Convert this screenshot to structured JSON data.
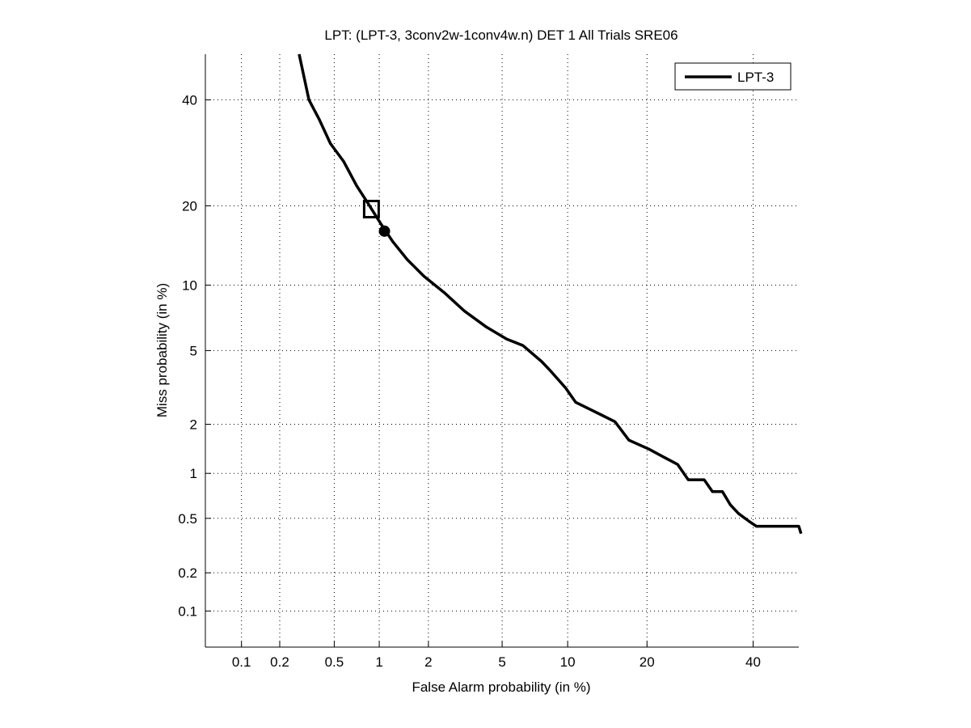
{
  "chart_data": {
    "type": "line",
    "title": "LPT: (LPT-3, 3conv2w-1conv4w.n) DET 1 All Trials SRE06",
    "xlabel": "False Alarm probability (in %)",
    "ylabel": "Miss probability (in %)",
    "xscale": "probit",
    "yscale": "probit",
    "xlim": [
      0.05,
      50
    ],
    "ylim": [
      0.05,
      50
    ],
    "grid": true,
    "xticks": [
      0.1,
      0.2,
      0.5,
      1,
      2,
      5,
      10,
      20,
      40
    ],
    "xtick_labels": [
      "0.1",
      "0.2",
      "0.5",
      "1",
      "2",
      "5",
      "10",
      "20",
      "40"
    ],
    "yticks": [
      0.1,
      0.2,
      0.5,
      1,
      2,
      5,
      10,
      20,
      40
    ],
    "ytick_labels": [
      "0.1",
      "0.2",
      "0.5",
      "1",
      "2",
      "5",
      "10",
      "20",
      "40"
    ],
    "legend": {
      "placement": "top-right",
      "entries": [
        "LPT-3"
      ]
    },
    "series": [
      {
        "name": "LPT-3",
        "color": "#000000",
        "x": [
          0.28,
          0.33,
          0.39,
          0.47,
          0.58,
          0.71,
          0.85,
          1.02,
          1.22,
          1.5,
          1.88,
          2.46,
          3.19,
          4.16,
          5.26,
          6.3,
          7.7,
          8.5,
          9.8,
          10.8,
          13.4,
          15.4,
          17.3,
          20.3,
          22.5,
          25.1,
          27.0,
          30.0,
          31.6,
          33.6,
          35.2,
          36.9,
          39.0,
          40.7,
          50.0,
          50.5
        ],
        "y": [
          50,
          40,
          36,
          31,
          27.6,
          23.3,
          20.3,
          17.4,
          14.9,
          12.7,
          10.9,
          9.3,
          7.7,
          6.5,
          5.7,
          5.3,
          4.4,
          3.9,
          3.2,
          2.67,
          2.3,
          2.07,
          1.61,
          1.42,
          1.28,
          1.14,
          0.91,
          0.91,
          0.76,
          0.76,
          0.62,
          0.54,
          0.48,
          0.44,
          0.44,
          0.39
        ]
      }
    ],
    "markers": [
      {
        "name": "actual-decision-point",
        "shape": "square",
        "x": 0.89,
        "y": 19.5
      },
      {
        "name": "min-dcf-point",
        "shape": "circle",
        "x": 1.08,
        "y": 16.3
      }
    ]
  }
}
